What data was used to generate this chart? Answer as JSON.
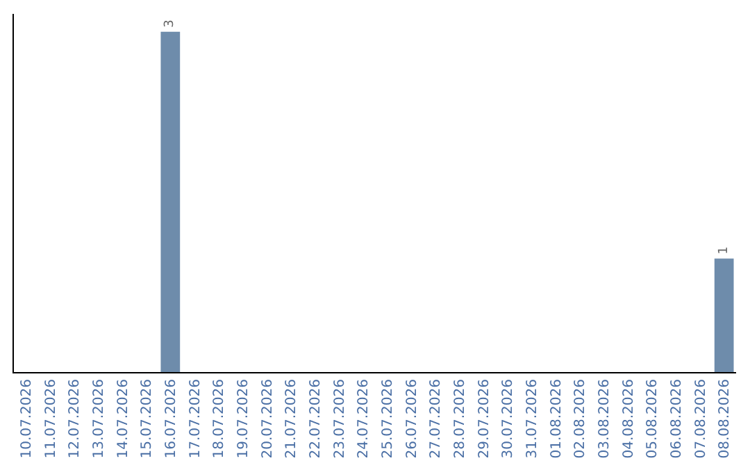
{
  "chart_data": {
    "type": "bar",
    "categories": [
      "10.07.2026",
      "11.07.2026",
      "12.07.2026",
      "13.07.2026",
      "14.07.2026",
      "15.07.2026",
      "16.07.2026",
      "17.07.2026",
      "18.07.2026",
      "19.07.2026",
      "20.07.2026",
      "21.07.2026",
      "22.07.2026",
      "23.07.2026",
      "24.07.2026",
      "25.07.2026",
      "26.07.2026",
      "27.07.2026",
      "28.07.2026",
      "29.07.2026",
      "30.07.2026",
      "31.07.2026",
      "01.08.2026",
      "02.08.2026",
      "03.08.2026",
      "04.08.2026",
      "05.08.2026",
      "06.08.2026",
      "07.08.2026",
      "08.08.2026"
    ],
    "values": [
      0,
      0,
      0,
      0,
      0,
      0,
      3,
      0,
      0,
      0,
      0,
      0,
      0,
      0,
      0,
      0,
      0,
      0,
      0,
      0,
      0,
      0,
      0,
      0,
      0,
      0,
      0,
      0,
      0,
      1
    ],
    "value_labels": [
      null,
      null,
      null,
      null,
      null,
      null,
      "3",
      null,
      null,
      null,
      null,
      null,
      null,
      null,
      null,
      null,
      null,
      null,
      null,
      null,
      null,
      null,
      null,
      null,
      null,
      null,
      null,
      null,
      null,
      "1"
    ],
    "color": "#6e8cab"
  }
}
